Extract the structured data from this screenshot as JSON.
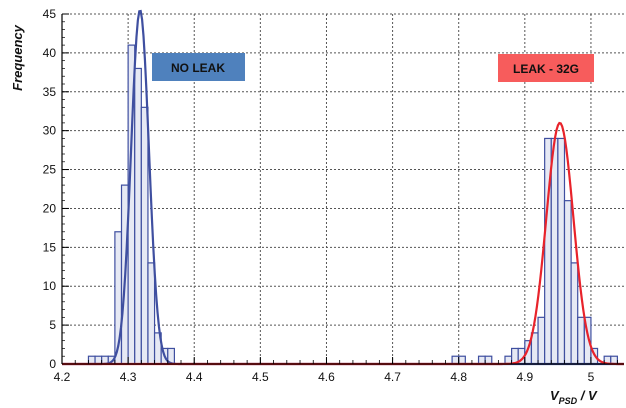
{
  "chart_data": {
    "type": "bar",
    "ylabel": "Frequency",
    "xlabel_main": "V",
    "xlabel_sub": "PSD",
    "xlabel_unit": " / V",
    "xlim": [
      4.2,
      5.05
    ],
    "ylim": [
      0,
      45
    ],
    "x_ticks": [
      "4.2",
      "4.3",
      "4.4",
      "4.5",
      "4.6",
      "4.7",
      "4.8",
      "4.9",
      "5"
    ],
    "y_ticks": [
      "0",
      "5",
      "10",
      "15",
      "20",
      "25",
      "30",
      "35",
      "40",
      "45"
    ],
    "grid": true,
    "annotations": [
      {
        "text": "NO LEAK",
        "color": "#4f81bd"
      },
      {
        "text": "LEAK - 32G",
        "color": "#f75c5c"
      }
    ],
    "bin_width": 0.01,
    "histogram_color": "#3f4fa0",
    "histogram_fill": "#e6e9f4",
    "series": [
      {
        "bin_starts": [
          4.24,
          4.25,
          4.26,
          4.27,
          4.28,
          4.29,
          4.3,
          4.31,
          4.32,
          4.33,
          4.34,
          4.35,
          4.36
        ],
        "values": [
          1,
          1,
          1,
          1,
          17,
          23,
          41,
          38,
          33,
          13,
          4,
          2,
          2
        ]
      },
      {
        "bin_starts": [
          4.79,
          4.8,
          4.83,
          4.84,
          4.87,
          4.88,
          4.89,
          4.9,
          4.91,
          4.92,
          4.93,
          4.94,
          4.95,
          4.96,
          4.97,
          4.98,
          4.99,
          5.0,
          5.02,
          5.03
        ],
        "values": [
          1,
          1,
          1,
          1,
          1,
          2,
          2,
          3,
          4,
          6,
          29,
          29,
          29,
          21,
          13,
          6,
          6,
          2,
          1,
          1
        ]
      }
    ],
    "fits": [
      {
        "color": "#3f4fa0",
        "amplitude": 45.5,
        "mean": 4.318,
        "sigma": 0.0135
      },
      {
        "color": "#e8232b",
        "amplitude": 31,
        "mean": 4.953,
        "sigma": 0.0205
      }
    ]
  }
}
